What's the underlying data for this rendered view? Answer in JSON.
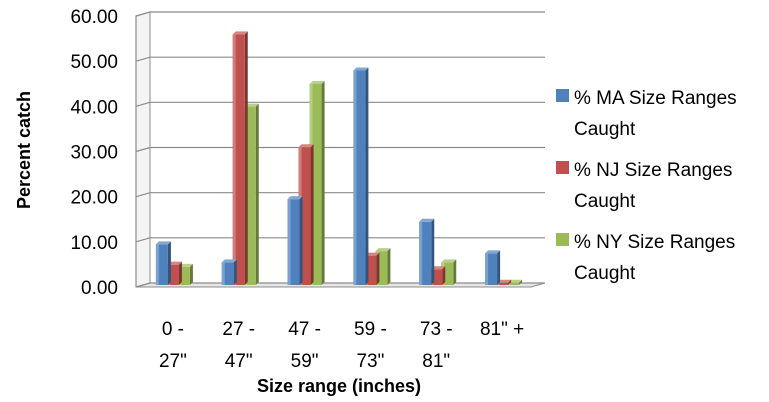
{
  "chart_data": {
    "type": "bar",
    "title": "",
    "xlabel": "Size range (inches)",
    "ylabel": "Percent catch",
    "ylim": [
      0,
      60
    ],
    "yticks": [
      "0.00",
      "10.00",
      "20.00",
      "30.00",
      "40.00",
      "50.00",
      "60.00"
    ],
    "categories": [
      [
        "0 -",
        "27\""
      ],
      [
        "27 -",
        "47\""
      ],
      [
        "47 -",
        "59\""
      ],
      [
        "59 -",
        "73\""
      ],
      [
        "73 -",
        "81\""
      ],
      [
        "81\" +"
      ]
    ],
    "series": [
      {
        "name": "% MA Size Ranges Caught",
        "legend_lines": [
          "% MA Size Ranges",
          "Caught"
        ],
        "color": "#4F81BD",
        "values": [
          9.0,
          5.0,
          19.0,
          47.5,
          14.0,
          7.0
        ]
      },
      {
        "name": "% NJ Size Ranges Caught",
        "legend_lines": [
          "% NJ Size Ranges",
          "Caught"
        ],
        "color": "#C0504D",
        "values": [
          4.5,
          55.5,
          30.5,
          6.5,
          3.5,
          0.5
        ]
      },
      {
        "name": "% NY Size Ranges Caught",
        "legend_lines": [
          "% NY Size Ranges",
          "Caught"
        ],
        "color": "#9BBB59",
        "values": [
          4.0,
          39.5,
          44.5,
          7.5,
          5.0,
          0.5
        ]
      }
    ],
    "grid": true,
    "legend_position": "right"
  }
}
